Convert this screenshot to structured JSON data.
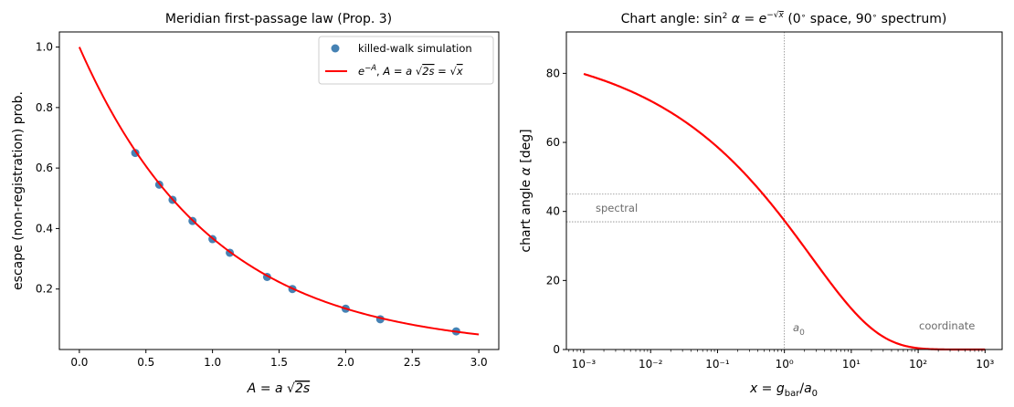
{
  "chart_data": [
    {
      "type": "scatter",
      "title": "Meridian first-passage law (Prop. 3)",
      "xlabel": "A = a √2s",
      "ylabel": "escape (non-registration) prob.",
      "xlim": [
        -0.15,
        3.15
      ],
      "ylim": [
        0.0,
        1.05
      ],
      "xticks": [
        "0.0",
        "0.5",
        "1.0",
        "1.5",
        "2.0",
        "2.5",
        "3.0"
      ],
      "yticks": [
        "0.2",
        "0.4",
        "0.6",
        "0.8",
        "1.0"
      ],
      "legend_position": "top-right",
      "series": [
        {
          "name": "killed-walk simulation",
          "kind": "markers",
          "color": "#4682b4",
          "x": [
            0.42,
            0.6,
            0.7,
            0.85,
            1.0,
            1.13,
            1.41,
            1.6,
            2.0,
            2.26,
            2.83
          ],
          "y": [
            0.65,
            0.545,
            0.495,
            0.425,
            0.365,
            0.32,
            0.24,
            0.2,
            0.135,
            0.1,
            0.06
          ]
        },
        {
          "name": "e⁻ᴬ, A = a √2s = √x",
          "kind": "line",
          "color": "#ff0000",
          "function": "exp(-A)",
          "x_range": [
            0.0,
            3.0
          ]
        }
      ]
    },
    {
      "type": "line",
      "title": "Chart angle: sin²α = e⁻√x (0° space, 90° spectrum)",
      "xlabel": "x = g_bar/a₀",
      "ylabel": "chart angle α [deg]",
      "xscale": "log",
      "xlim": [
        0.00055,
        1800
      ],
      "ylim": [
        0,
        92
      ],
      "xticks": [
        "10⁻³",
        "10⁻²",
        "10⁻¹",
        "10⁰",
        "10¹",
        "10²",
        "10³"
      ],
      "yticks": [
        "0",
        "20",
        "40",
        "60",
        "80"
      ],
      "series": [
        {
          "kind": "line",
          "color": "#ff0000",
          "function": "arcsin(sqrt(exp(-sqrt(x)))) in degrees",
          "x_range": [
            0.001,
            1000
          ]
        }
      ],
      "reference_lines": {
        "vertical_x": 1,
        "horizontal_y": [
          45,
          37
        ]
      },
      "annotations": {
        "spectral": "spectral",
        "a0": "a₀",
        "coordinate": "coordinate"
      }
    }
  ]
}
